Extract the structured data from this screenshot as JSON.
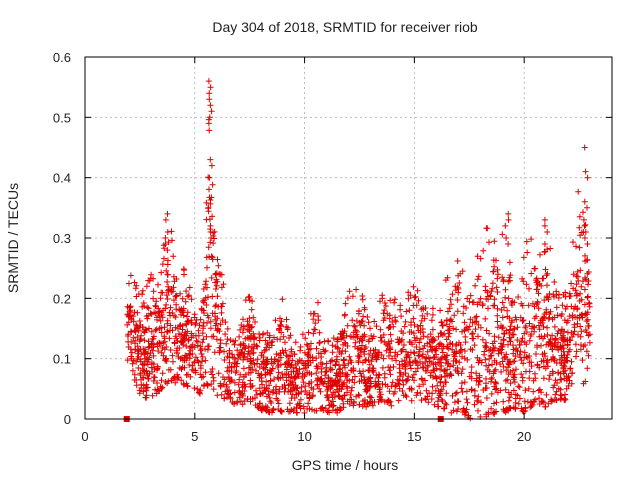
{
  "chart_data": {
    "type": "scatter",
    "title": "Day 304 of 2018, SRMTID for receiver riob",
    "xlabel": "GPS time / hours",
    "ylabel": "SRMTID / TECUs",
    "xlim": [
      0,
      24
    ],
    "ylim": [
      0,
      0.6
    ],
    "xticks": [
      0,
      5,
      10,
      15,
      20
    ],
    "yticks": [
      0,
      0.1,
      0.2,
      0.3,
      0.4,
      0.5,
      0.6
    ],
    "xtick_labels": [
      "0",
      "5",
      "10",
      "15",
      "20"
    ],
    "ytick_labels": [
      "0",
      "0.1",
      "0.2",
      "0.3",
      "0.4",
      "0.5",
      "0.6"
    ],
    "grid": true,
    "marker": "+",
    "color": "#e00000",
    "series": [
      {
        "name": "SRMTID",
        "envelope": [
          [
            1.9,
            0.1,
            0.26
          ],
          [
            2.5,
            0.04,
            0.21
          ],
          [
            3.0,
            0.03,
            0.24
          ],
          [
            3.5,
            0.05,
            0.27
          ],
          [
            3.8,
            0.06,
            0.33
          ],
          [
            4.3,
            0.06,
            0.27
          ],
          [
            4.8,
            0.05,
            0.22
          ],
          [
            5.3,
            0.04,
            0.19
          ],
          [
            5.7,
            0.06,
            0.56
          ],
          [
            6.0,
            0.04,
            0.31
          ],
          [
            6.5,
            0.03,
            0.17
          ],
          [
            7.0,
            0.02,
            0.14
          ],
          [
            7.5,
            0.03,
            0.23
          ],
          [
            8.0,
            0.01,
            0.14
          ],
          [
            8.5,
            0.01,
            0.15
          ],
          [
            9.0,
            0.01,
            0.2
          ],
          [
            9.5,
            0.01,
            0.13
          ],
          [
            10.0,
            0.01,
            0.15
          ],
          [
            10.5,
            0.01,
            0.22
          ],
          [
            11.0,
            0.01,
            0.13
          ],
          [
            11.5,
            0.01,
            0.15
          ],
          [
            12.0,
            0.02,
            0.21
          ],
          [
            12.5,
            0.02,
            0.23
          ],
          [
            13.0,
            0.02,
            0.15
          ],
          [
            13.5,
            0.03,
            0.21
          ],
          [
            14.0,
            0.02,
            0.2
          ],
          [
            14.5,
            0.03,
            0.2
          ],
          [
            15.0,
            0.03,
            0.23
          ],
          [
            15.5,
            0.03,
            0.2
          ],
          [
            16.0,
            0.02,
            0.18
          ],
          [
            16.5,
            0.01,
            0.24
          ],
          [
            17.0,
            0.01,
            0.28
          ],
          [
            17.5,
            0.0,
            0.2
          ],
          [
            18.0,
            0.0,
            0.31
          ],
          [
            18.5,
            0.0,
            0.33
          ],
          [
            19.0,
            0.01,
            0.33
          ],
          [
            19.5,
            0.01,
            0.24
          ],
          [
            20.0,
            0.01,
            0.3
          ],
          [
            20.5,
            0.02,
            0.3
          ],
          [
            21.0,
            0.02,
            0.33
          ],
          [
            21.5,
            0.03,
            0.21
          ],
          [
            22.0,
            0.03,
            0.21
          ],
          [
            22.4,
            0.05,
            0.37
          ],
          [
            22.7,
            0.03,
            0.45
          ],
          [
            23.0,
            0.12,
            0.21
          ]
        ],
        "spikes": [
          {
            "x": 5.7,
            "values": [
              0.56,
              0.55,
              0.54,
              0.53,
              0.52,
              0.51,
              0.5,
              0.49,
              0.43,
              0.42,
              0.4,
              0.35,
              0.32,
              0.31,
              0.3
            ]
          },
          {
            "x": 22.8,
            "values": [
              0.45,
              0.41,
              0.4,
              0.36,
              0.35,
              0.33,
              0.32,
              0.31,
              0.3,
              0.29
            ]
          },
          {
            "x": 3.7,
            "values": [
              0.34,
              0.33,
              0.31,
              0.3,
              0.29,
              0.28
            ]
          },
          {
            "x": 19.2,
            "values": [
              0.34,
              0.33,
              0.32,
              0.3,
              0.29
            ]
          },
          {
            "x": 21.0,
            "values": [
              0.33,
              0.32,
              0.31,
              0.29
            ]
          }
        ],
        "zero_markers": [
          1.9,
          16.2
        ]
      }
    ]
  }
}
